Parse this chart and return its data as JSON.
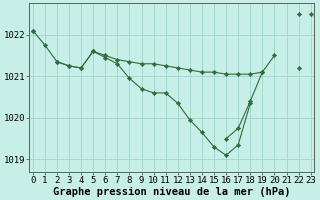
{
  "title": "Graphe pression niveau de la mer (hPa)",
  "background_color": "#c8eee8",
  "grid_color": "#9dd4cc",
  "line_color": "#2d6e3a",
  "ylim": [
    1018.7,
    1022.75
  ],
  "xlim": [
    -0.3,
    23.3
  ],
  "yticks": [
    1019,
    1020,
    1021,
    1022
  ],
  "xtick_labels": [
    "0",
    "1",
    "2",
    "3",
    "4",
    "5",
    "6",
    "7",
    "8",
    "9",
    "10",
    "11",
    "12",
    "13",
    "14",
    "15",
    "16",
    "17",
    "18",
    "19",
    "20",
    "21",
    "22",
    "23"
  ],
  "series1": [
    1022.1,
    1021.75,
    1021.35,
    1021.25,
    1021.2,
    1021.6,
    1021.5,
    1021.4,
    1021.35,
    1021.3,
    1021.3,
    1021.25,
    1021.2,
    1021.15,
    1021.1,
    1021.1,
    1021.05,
    1021.05,
    1021.05,
    1021.1,
    null,
    null,
    null,
    1022.5
  ],
  "series2": [
    null,
    null,
    1021.35,
    1021.25,
    1021.2,
    1021.6,
    1021.45,
    1021.3,
    1020.95,
    1020.7,
    1020.6,
    1020.6,
    1020.35,
    1019.95,
    1019.65,
    1019.3,
    1019.1,
    1019.35,
    1020.35,
    null,
    null,
    null,
    1021.2,
    null
  ],
  "series3": [
    1022.1,
    null,
    null,
    null,
    null,
    null,
    null,
    null,
    null,
    null,
    null,
    null,
    null,
    null,
    null,
    null,
    1019.5,
    1019.75,
    1020.4,
    1021.1,
    1021.5,
    null,
    1022.5,
    null
  ],
  "xlabel_fontsize": 7.5,
  "tick_fontsize": 6.5
}
